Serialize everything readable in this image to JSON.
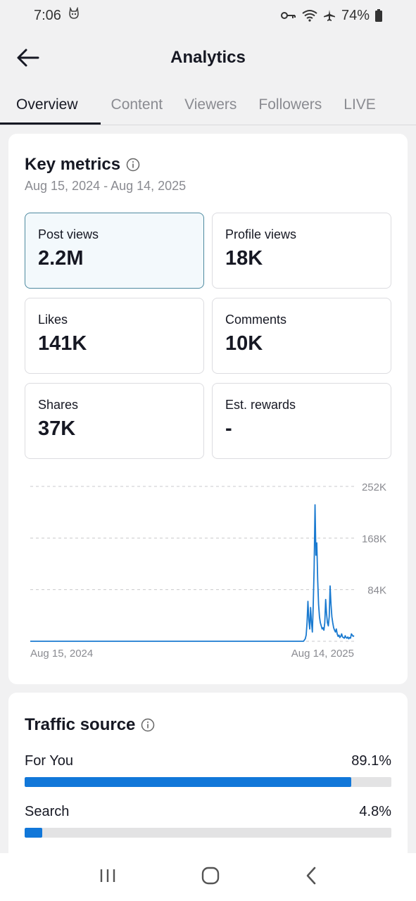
{
  "status": {
    "time": "7:06",
    "battery": "74%"
  },
  "header": {
    "title": "Analytics"
  },
  "tabs": [
    "Overview",
    "Content",
    "Viewers",
    "Followers",
    "LIVE"
  ],
  "key_metrics": {
    "title": "Key metrics",
    "date_range": "Aug 15, 2024 - Aug 14, 2025",
    "metrics": [
      {
        "label": "Post views",
        "value": "2.2M"
      },
      {
        "label": "Profile views",
        "value": "18K"
      },
      {
        "label": "Likes",
        "value": "141K"
      },
      {
        "label": "Comments",
        "value": "10K"
      },
      {
        "label": "Shares",
        "value": "37K"
      },
      {
        "label": "Est. rewards",
        "value": "-"
      }
    ]
  },
  "chart_data": {
    "type": "line",
    "x_start_label": "Aug 15, 2024",
    "x_end_label": "Aug 14, 2025",
    "y_ticks": [
      "252K",
      "168K",
      "84K"
    ],
    "ylim": [
      0,
      252000
    ],
    "grid": true,
    "series": [
      {
        "color": "#1a7ad0",
        "values": [
          0,
          0,
          0,
          0,
          0,
          0,
          0,
          0,
          0,
          0,
          0,
          0,
          0,
          0,
          0,
          0,
          0,
          0,
          0,
          0,
          0,
          0,
          0,
          0,
          0,
          0,
          0,
          0,
          0,
          0,
          0,
          0,
          0,
          0,
          0,
          0,
          0,
          0,
          0,
          0,
          0,
          0,
          0,
          0,
          0,
          0,
          0,
          0,
          0,
          0,
          0,
          0,
          0,
          0,
          0,
          0,
          0,
          0,
          0,
          0,
          0,
          0,
          0,
          0,
          0,
          0,
          0,
          0,
          0,
          0,
          0,
          0,
          0,
          0,
          0,
          0,
          0,
          0,
          0,
          0,
          0,
          0,
          0,
          0,
          0,
          0,
          0,
          0,
          0,
          0,
          0,
          0,
          0,
          0,
          0,
          0,
          0,
          0,
          0,
          0,
          0,
          0,
          0,
          0,
          0,
          0,
          0,
          0,
          0,
          0,
          0,
          0,
          0,
          0,
          0,
          0,
          0,
          0,
          0,
          0,
          0,
          0,
          0,
          0,
          0,
          0,
          0,
          0,
          0,
          0,
          0,
          0,
          0,
          0,
          0,
          0,
          0,
          0,
          0,
          0,
          0,
          0,
          0,
          0,
          0,
          0,
          0,
          0,
          0,
          0,
          0,
          0,
          0,
          0,
          0,
          0,
          0,
          0,
          0,
          0,
          0,
          0,
          0,
          0,
          0,
          0,
          0,
          0,
          0,
          0,
          0,
          0,
          0,
          0,
          0,
          0,
          0,
          0,
          0,
          0,
          0,
          0,
          0,
          0,
          0,
          0,
          0,
          0,
          0,
          0,
          0,
          0,
          0,
          0,
          0,
          0,
          0,
          0,
          0,
          0,
          0,
          0,
          0,
          0,
          0,
          0,
          0,
          0,
          0,
          0,
          0,
          0,
          0,
          0,
          0,
          0,
          0,
          0,
          0,
          0,
          0,
          0,
          0,
          0,
          0,
          0,
          0,
          0,
          0,
          0,
          0,
          0,
          0,
          0,
          0,
          0,
          0,
          0,
          0,
          0,
          0,
          0,
          0,
          0,
          0,
          0,
          0,
          0,
          0,
          0,
          0,
          0,
          0,
          0,
          0,
          0,
          0,
          0,
          0,
          0,
          0,
          0,
          0,
          0,
          0,
          0,
          0,
          0,
          0,
          0,
          0,
          0,
          0,
          0,
          0,
          0,
          0,
          0,
          0,
          0,
          0,
          0,
          0,
          0,
          0,
          0,
          0,
          0,
          0,
          0,
          0,
          0,
          0,
          0,
          0,
          0,
          0,
          0,
          0,
          0,
          0,
          0,
          0,
          0,
          0,
          0,
          0,
          0,
          0,
          2000,
          4000,
          10000,
          30000,
          65000,
          35000,
          20000,
          55000,
          30000,
          15000,
          60000,
          120000,
          222000,
          140000,
          160000,
          100000,
          60000,
          40000,
          30000,
          25000,
          20000,
          22000,
          18000,
          30000,
          68000,
          45000,
          30000,
          25000,
          40000,
          90000,
          60000,
          40000,
          30000,
          22000,
          18000,
          15000,
          20000,
          12000,
          8000,
          10000,
          6000,
          8000,
          12000,
          7000,
          6000,
          5000,
          9000,
          6000,
          5000,
          7000,
          4000,
          6000,
          5000,
          12000,
          10000,
          8000,
          9000
        ]
      }
    ]
  },
  "traffic_source": {
    "title": "Traffic source",
    "items": [
      {
        "label": "For You",
        "pct": "89.1%",
        "value": 89.1
      },
      {
        "label": "Search",
        "pct": "4.8%",
        "value": 4.8
      }
    ]
  },
  "colors": {
    "accent": "#1177d9",
    "selected_border": "#4e8aa0"
  },
  "icons": {
    "back": "arrow-left-icon",
    "info": "info-icon",
    "nav": [
      "recent-apps-icon",
      "home-icon",
      "back-nav-icon"
    ]
  }
}
